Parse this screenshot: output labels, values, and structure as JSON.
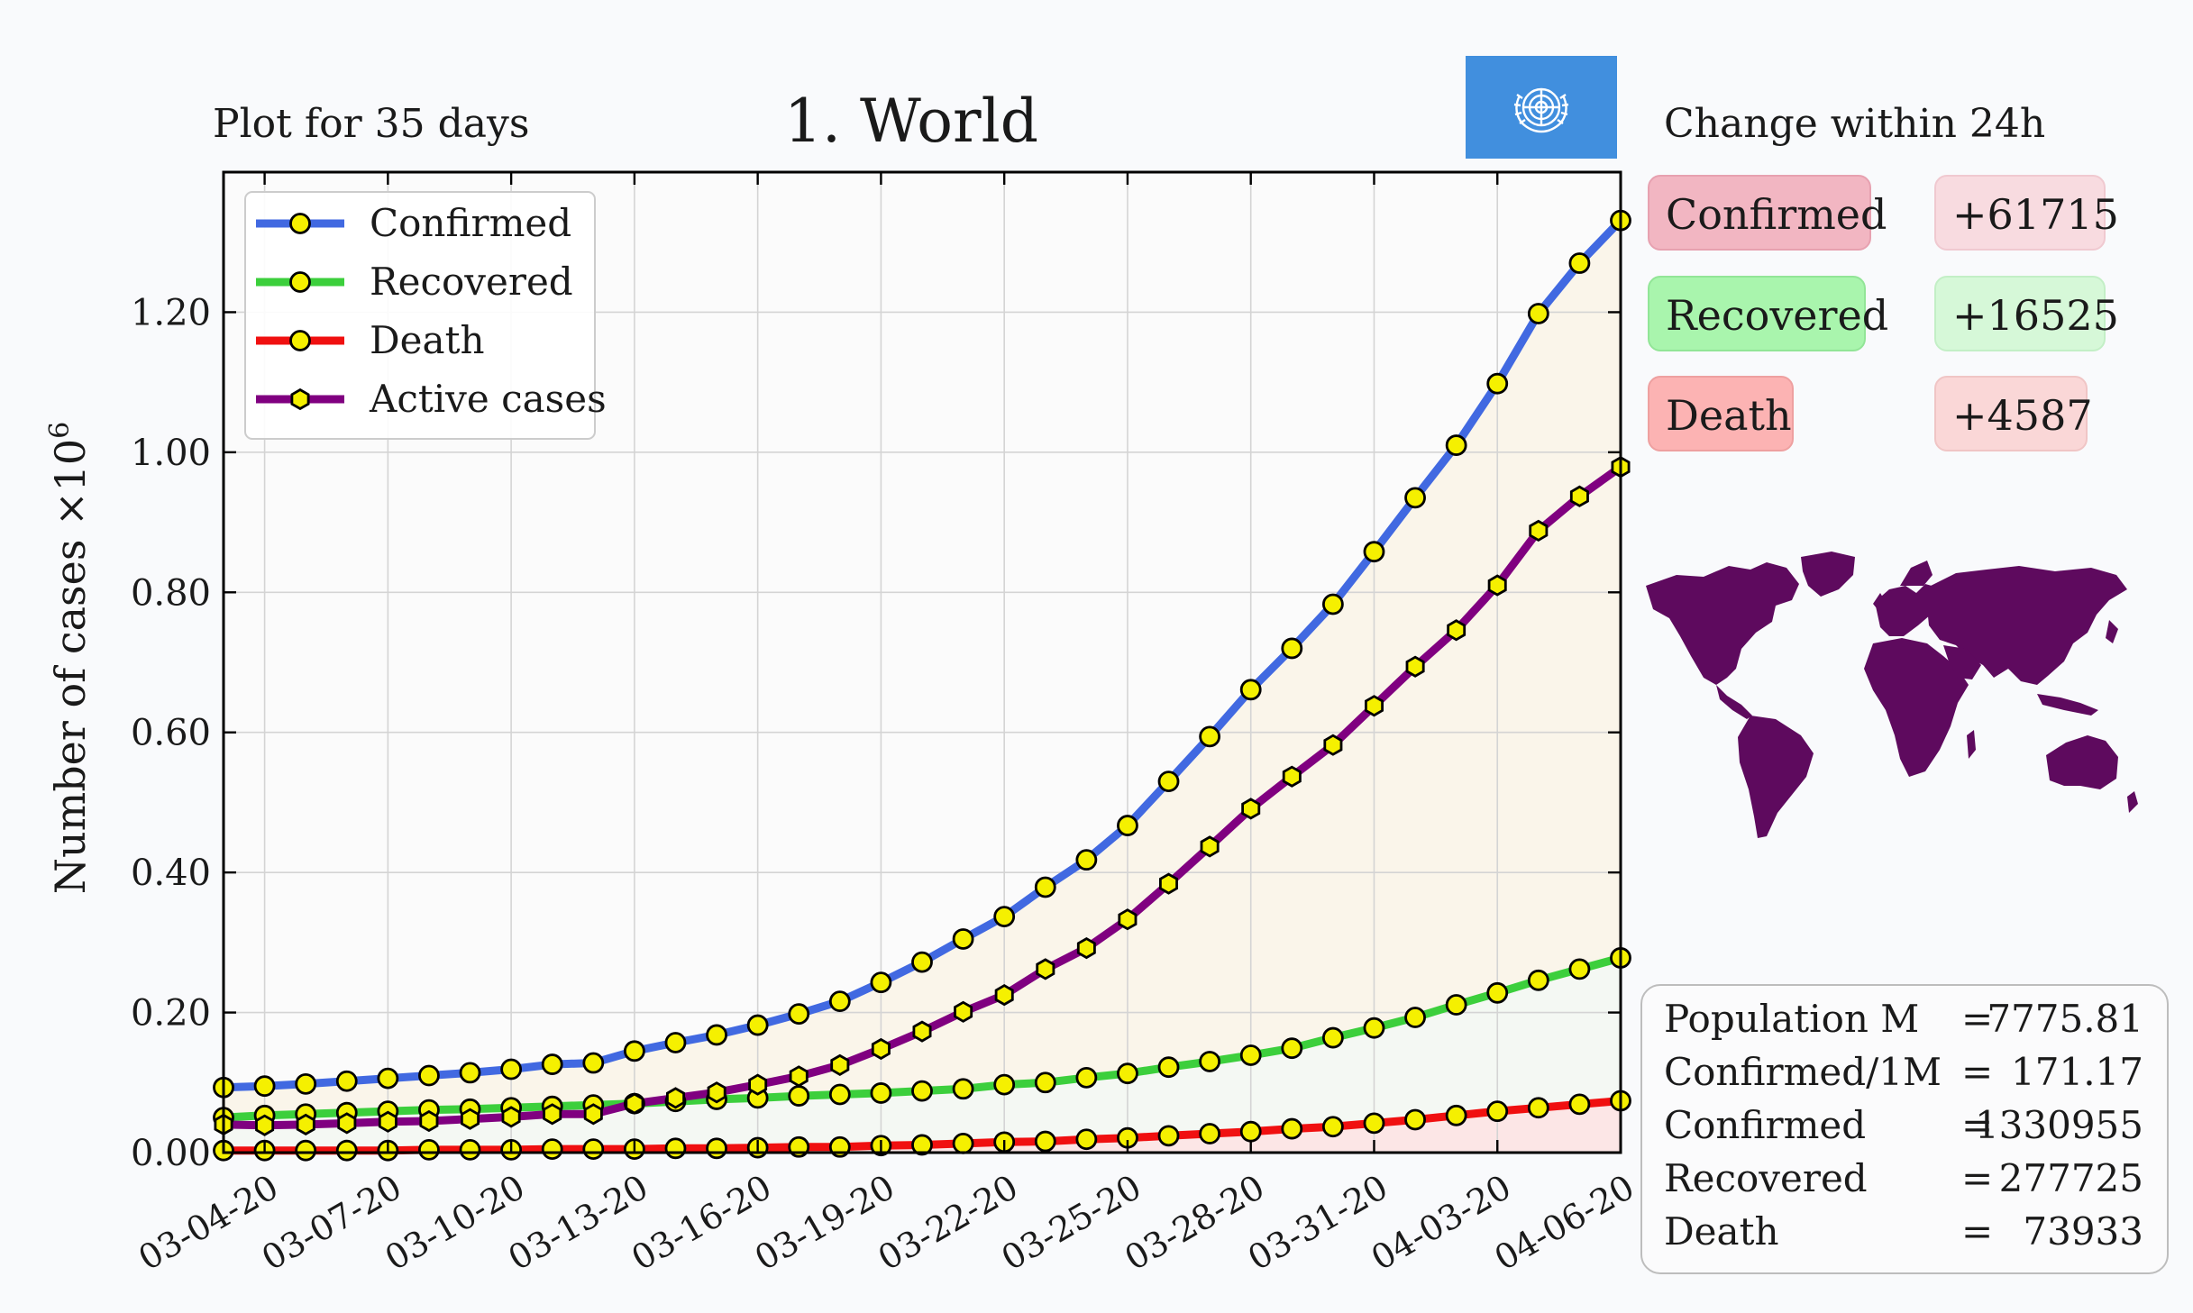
{
  "header": {
    "left_caption": "Plot for 35 days",
    "title": "1.  World",
    "change_title": "Change within 24h",
    "flag_icon": "un-emblem-icon",
    "flag_color": "#418fde"
  },
  "changes": [
    {
      "label": "Confirmed",
      "value": "+61715",
      "label_bg": "#f2b6c2",
      "value_bg": "#f8dbe0"
    },
    {
      "label": "Recovered",
      "value": "+16525",
      "label_bg": "#a9f5ad",
      "value_bg": "#d6f8d8"
    },
    {
      "label": "Death",
      "value": "+4587",
      "label_bg": "#fcb3b3",
      "value_bg": "#fad7d7"
    }
  ],
  "stats": [
    {
      "label": "Population M",
      "eq": "=",
      "value": "7775.81"
    },
    {
      "label": "Confirmed/1M",
      "eq": "=",
      "value": "171.17"
    },
    {
      "label": "Confirmed",
      "eq": "=",
      "value": "1330955"
    },
    {
      "label": "Recovered",
      "eq": "=",
      "value": "277725"
    },
    {
      "label": "Death",
      "eq": "=",
      "value": "73933"
    }
  ],
  "map": {
    "icon": "world-map-icon",
    "color": "#5e0a5e"
  },
  "chart_data": {
    "type": "line",
    "ylabel": "Number of cases ×10⁶",
    "ylabel_main": "Number of cases ",
    "ylabel_times": "×10",
    "ylabel_exp": "6",
    "xlabel": "",
    "ylim": [
      0,
      1.4
    ],
    "yticks": [
      "0.00",
      "0.20",
      "0.40",
      "0.60",
      "0.80",
      "1.00",
      "1.20"
    ],
    "ytick_values": [
      0,
      0.2,
      0.4,
      0.6,
      0.8,
      1.0,
      1.2
    ],
    "grid": true,
    "legend_position": "upper-left",
    "x": [
      "03-03-20",
      "03-04-20",
      "03-05-20",
      "03-06-20",
      "03-07-20",
      "03-08-20",
      "03-09-20",
      "03-10-20",
      "03-11-20",
      "03-12-20",
      "03-13-20",
      "03-14-20",
      "03-15-20",
      "03-16-20",
      "03-17-20",
      "03-18-20",
      "03-19-20",
      "03-20-20",
      "03-21-20",
      "03-22-20",
      "03-23-20",
      "03-24-20",
      "03-25-20",
      "03-26-20",
      "03-27-20",
      "03-28-20",
      "03-29-20",
      "03-30-20",
      "03-31-20",
      "04-01-20",
      "04-02-20",
      "04-03-20",
      "04-04-20",
      "04-05-20",
      "04-06-20"
    ],
    "xtick_labels": [
      "03-04-20",
      "03-07-20",
      "03-10-20",
      "03-13-20",
      "03-16-20",
      "03-19-20",
      "03-22-20",
      "03-25-20",
      "03-28-20",
      "03-31-20",
      "04-03-20",
      "04-06-20"
    ],
    "series": [
      {
        "name": "Confirmed",
        "color": "#4169e1",
        "marker": "circle",
        "values": [
          0.093,
          0.095,
          0.098,
          0.102,
          0.106,
          0.11,
          0.114,
          0.119,
          0.126,
          0.128,
          0.145,
          0.157,
          0.168,
          0.182,
          0.198,
          0.216,
          0.243,
          0.272,
          0.305,
          0.337,
          0.379,
          0.418,
          0.467,
          0.53,
          0.594,
          0.661,
          0.72,
          0.783,
          0.858,
          0.935,
          1.01,
          1.098,
          1.198,
          1.27,
          1.331
        ]
      },
      {
        "name": "Recovered",
        "color": "#3ccf3c",
        "marker": "circle",
        "values": [
          0.05,
          0.053,
          0.055,
          0.057,
          0.059,
          0.061,
          0.062,
          0.064,
          0.066,
          0.068,
          0.07,
          0.073,
          0.076,
          0.078,
          0.081,
          0.083,
          0.085,
          0.088,
          0.091,
          0.097,
          0.1,
          0.107,
          0.113,
          0.122,
          0.13,
          0.139,
          0.149,
          0.164,
          0.178,
          0.193,
          0.211,
          0.228,
          0.246,
          0.262,
          0.278
        ]
      },
      {
        "name": "Death",
        "color": "#f01010",
        "marker": "circle",
        "values": [
          0.003,
          0.003,
          0.003,
          0.003,
          0.003,
          0.004,
          0.004,
          0.004,
          0.005,
          0.005,
          0.005,
          0.006,
          0.006,
          0.007,
          0.008,
          0.008,
          0.01,
          0.011,
          0.013,
          0.015,
          0.016,
          0.019,
          0.021,
          0.024,
          0.027,
          0.03,
          0.034,
          0.037,
          0.042,
          0.047,
          0.053,
          0.059,
          0.064,
          0.069,
          0.074
        ]
      },
      {
        "name": "Active cases",
        "color": "#800080",
        "marker": "hexagon",
        "values": [
          0.04,
          0.039,
          0.04,
          0.042,
          0.044,
          0.045,
          0.048,
          0.051,
          0.055,
          0.055,
          0.07,
          0.078,
          0.086,
          0.097,
          0.109,
          0.125,
          0.148,
          0.173,
          0.201,
          0.225,
          0.262,
          0.292,
          0.333,
          0.384,
          0.437,
          0.491,
          0.537,
          0.582,
          0.638,
          0.694,
          0.746,
          0.81,
          0.888,
          0.937,
          0.979
        ]
      }
    ],
    "fills": [
      {
        "between": [
          "Confirmed",
          "Recovered"
        ],
        "color": "#faf5ea"
      },
      {
        "between": [
          "Recovered",
          "Death"
        ],
        "color": "#f4f8f3"
      },
      {
        "between": [
          "Death",
          "zero"
        ],
        "color": "#fce6e6"
      }
    ]
  }
}
